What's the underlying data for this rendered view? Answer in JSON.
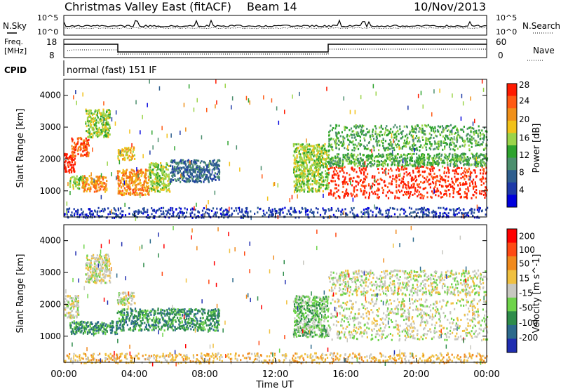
{
  "header": {
    "title": "Christmas Valley East (fitACF)",
    "beam": "Beam 14",
    "date": "10/Nov/2013"
  },
  "top_panels": {
    "nsky_label": "N.Sky",
    "nsearch_label": "N.Search",
    "noise_ticks": [
      "10^5",
      "10^0"
    ],
    "freq_label_1": "Freq.",
    "freq_label_2": "[MHz]",
    "freq_ticks": [
      "18",
      "8"
    ],
    "nave_ticks": [
      "60",
      "0"
    ],
    "nave_label": "Nave",
    "cpid_label": "CPID",
    "cpid_text": "normal (fast) 151 IF"
  },
  "chart_data": [
    {
      "type": "heatmap",
      "title": "",
      "xlabel": "Time UT",
      "ylabel": "Slant Range [km]",
      "xlim": [
        0,
        24
      ],
      "ylim": [
        180,
        4500
      ],
      "x_ticks": [
        "00:00",
        "04:00",
        "08:00",
        "12:00",
        "16:00",
        "20:00",
        "00:00"
      ],
      "y_ticks": [
        "1000",
        "2000",
        "3000",
        "4000"
      ],
      "colorbar_label": "Power [dB]",
      "colorbar_ticks": [
        "4",
        "8",
        "12",
        "16",
        "20",
        "24",
        "28"
      ],
      "colorbar_colors": [
        "#0000dd",
        "#1e3aa8",
        "#2e5e8e",
        "#4c8f6e",
        "#2ea32e",
        "#9bd44a",
        "#f2c21a",
        "#f0901a",
        "#ff5a14",
        "#ff1a00"
      ],
      "regions": [
        {
          "t0": 0.0,
          "t1": 0.6,
          "r0": 1600,
          "r1": 2200,
          "level": 9
        },
        {
          "t0": 0.4,
          "t1": 1.4,
          "r0": 2100,
          "r1": 2700,
          "level": 8
        },
        {
          "t0": 0.3,
          "t1": 1.2,
          "r0": 1100,
          "r1": 1500,
          "level": 5
        },
        {
          "t0": 1.2,
          "t1": 2.6,
          "r0": 2700,
          "r1": 3600,
          "level": 5
        },
        {
          "t0": 1.0,
          "t1": 2.4,
          "r0": 1000,
          "r1": 1500,
          "level": 7
        },
        {
          "t0": 3.0,
          "t1": 4.0,
          "r0": 2000,
          "r1": 2400,
          "level": 6
        },
        {
          "t0": 3.0,
          "t1": 4.8,
          "r0": 900,
          "r1": 1700,
          "level": 7
        },
        {
          "t0": 4.8,
          "t1": 6.0,
          "r0": 1000,
          "r1": 1900,
          "level": 5
        },
        {
          "t0": 6.0,
          "t1": 8.8,
          "r0": 1300,
          "r1": 2000,
          "level": 2
        },
        {
          "t0": 13.0,
          "t1": 15.0,
          "r0": 1000,
          "r1": 2500,
          "level": 5
        },
        {
          "t0": 15.0,
          "t1": 24.0,
          "r0": 800,
          "r1": 1800,
          "level": 9
        },
        {
          "t0": 15.0,
          "t1": 24.0,
          "r0": 1800,
          "r1": 2200,
          "level": 4
        },
        {
          "t0": 15.0,
          "t1": 24.0,
          "r0": 2300,
          "r1": 3100,
          "level": 4
        },
        {
          "t0": 0.0,
          "t1": 24.0,
          "r0": 180,
          "r1": 500,
          "level": 1
        }
      ]
    },
    {
      "type": "heatmap",
      "title": "",
      "xlabel": "Time UT",
      "ylabel": "Slant Range [km]",
      "xlim": [
        0,
        24
      ],
      "ylim": [
        180,
        4500
      ],
      "x_ticks": [
        "00:00",
        "04:00",
        "08:00",
        "12:00",
        "16:00",
        "20:00",
        "00:00"
      ],
      "y_ticks": [
        "1000",
        "2000",
        "3000",
        "4000"
      ],
      "colorbar_label": "Velocity [m s^-1]",
      "colorbar_ticks": [
        "200",
        "100",
        "50",
        "15",
        "-15",
        "-50",
        "-100",
        "-200"
      ],
      "colorbar_colors": [
        "#1f2db0",
        "#2c6a8c",
        "#2e8c4a",
        "#6ed34a",
        "#c8c8c0",
        "#f0c040",
        "#f08a1e",
        "#ff4a14",
        "#ff0000"
      ],
      "regions": [
        {
          "t0": 0.0,
          "t1": 0.8,
          "r0": 1600,
          "r1": 2300,
          "level": 4
        },
        {
          "t0": 1.2,
          "t1": 2.6,
          "r0": 2700,
          "r1": 3600,
          "level": 4
        },
        {
          "t0": 0.3,
          "t1": 3.0,
          "r0": 1100,
          "r1": 1500,
          "level": 2
        },
        {
          "t0": 3.0,
          "t1": 8.8,
          "r0": 1200,
          "r1": 1900,
          "level": 2
        },
        {
          "t0": 3.0,
          "t1": 4.0,
          "r0": 2000,
          "r1": 2400,
          "level": 4
        },
        {
          "t0": 13.0,
          "t1": 15.0,
          "r0": 1000,
          "r1": 2300,
          "level": 3
        },
        {
          "t0": 15.0,
          "t1": 24.0,
          "r0": 900,
          "r1": 2200,
          "level": 4
        },
        {
          "t0": 15.0,
          "t1": 24.0,
          "r0": 2300,
          "r1": 3100,
          "level": 4
        },
        {
          "t0": 0.0,
          "t1": 24.0,
          "r0": 180,
          "r1": 500,
          "level": 5
        }
      ]
    }
  ]
}
